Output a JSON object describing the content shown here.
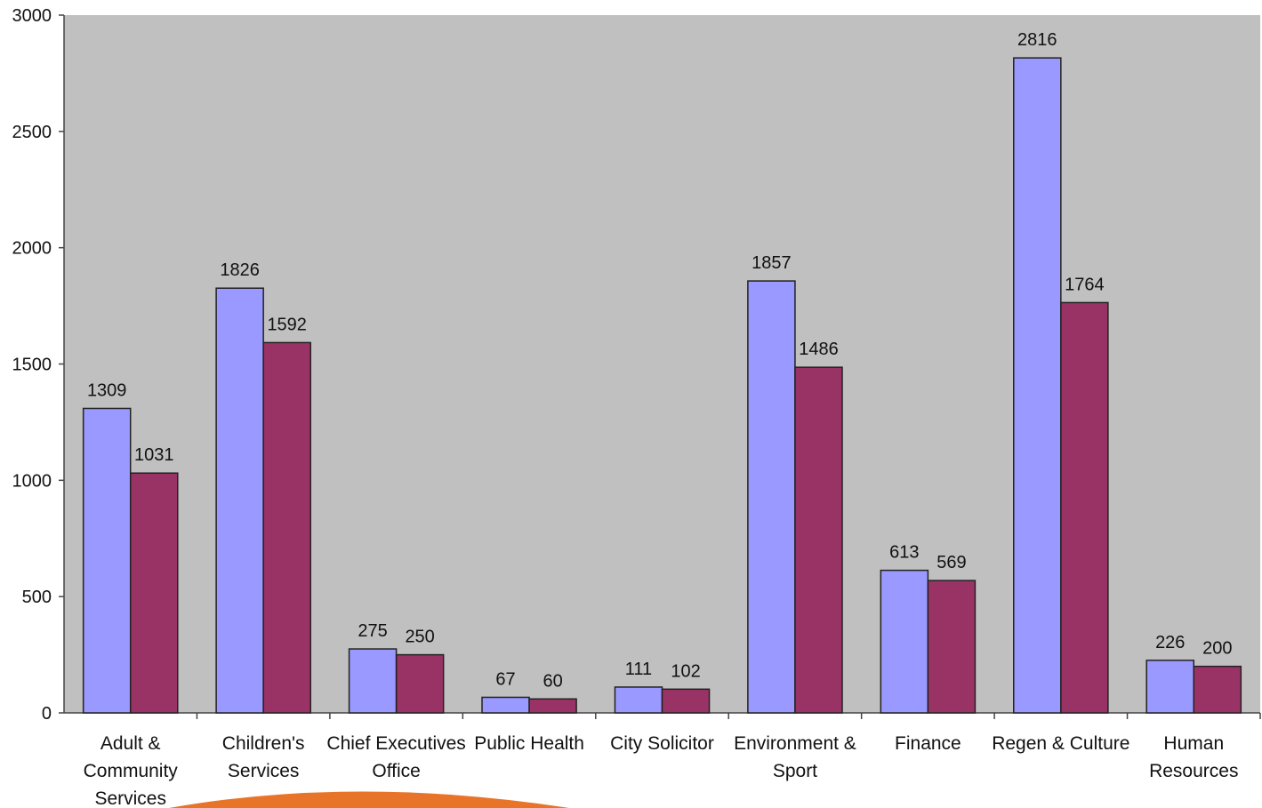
{
  "chart_data": {
    "type": "bar",
    "title": "",
    "xlabel": "",
    "ylabel": "",
    "ylim": [
      0,
      3000
    ],
    "yticks": [
      0,
      500,
      1000,
      1500,
      2000,
      2500,
      3000
    ],
    "grid": false,
    "legend": "none",
    "categories": [
      [
        "Adult &",
        "Community",
        "Services"
      ],
      [
        "Children's",
        "Services"
      ],
      [
        "Chief Executives",
        "Office"
      ],
      [
        "Public Health"
      ],
      [
        "City Solicitor"
      ],
      [
        "Environment &",
        "Sport"
      ],
      [
        "Finance"
      ],
      [
        "Regen & Culture"
      ],
      [
        "Human",
        "Resources"
      ]
    ],
    "series": [
      {
        "values": [
          1309,
          1826,
          275,
          67,
          111,
          1857,
          613,
          2816,
          226
        ],
        "color": "#9999ff"
      },
      {
        "values": [
          1031,
          1592,
          250,
          60,
          102,
          1486,
          569,
          1764,
          200
        ],
        "color": "#993366"
      }
    ],
    "data_labels": true,
    "plot_background": "#c0c0c0",
    "decoration_color": "#e8742a"
  }
}
